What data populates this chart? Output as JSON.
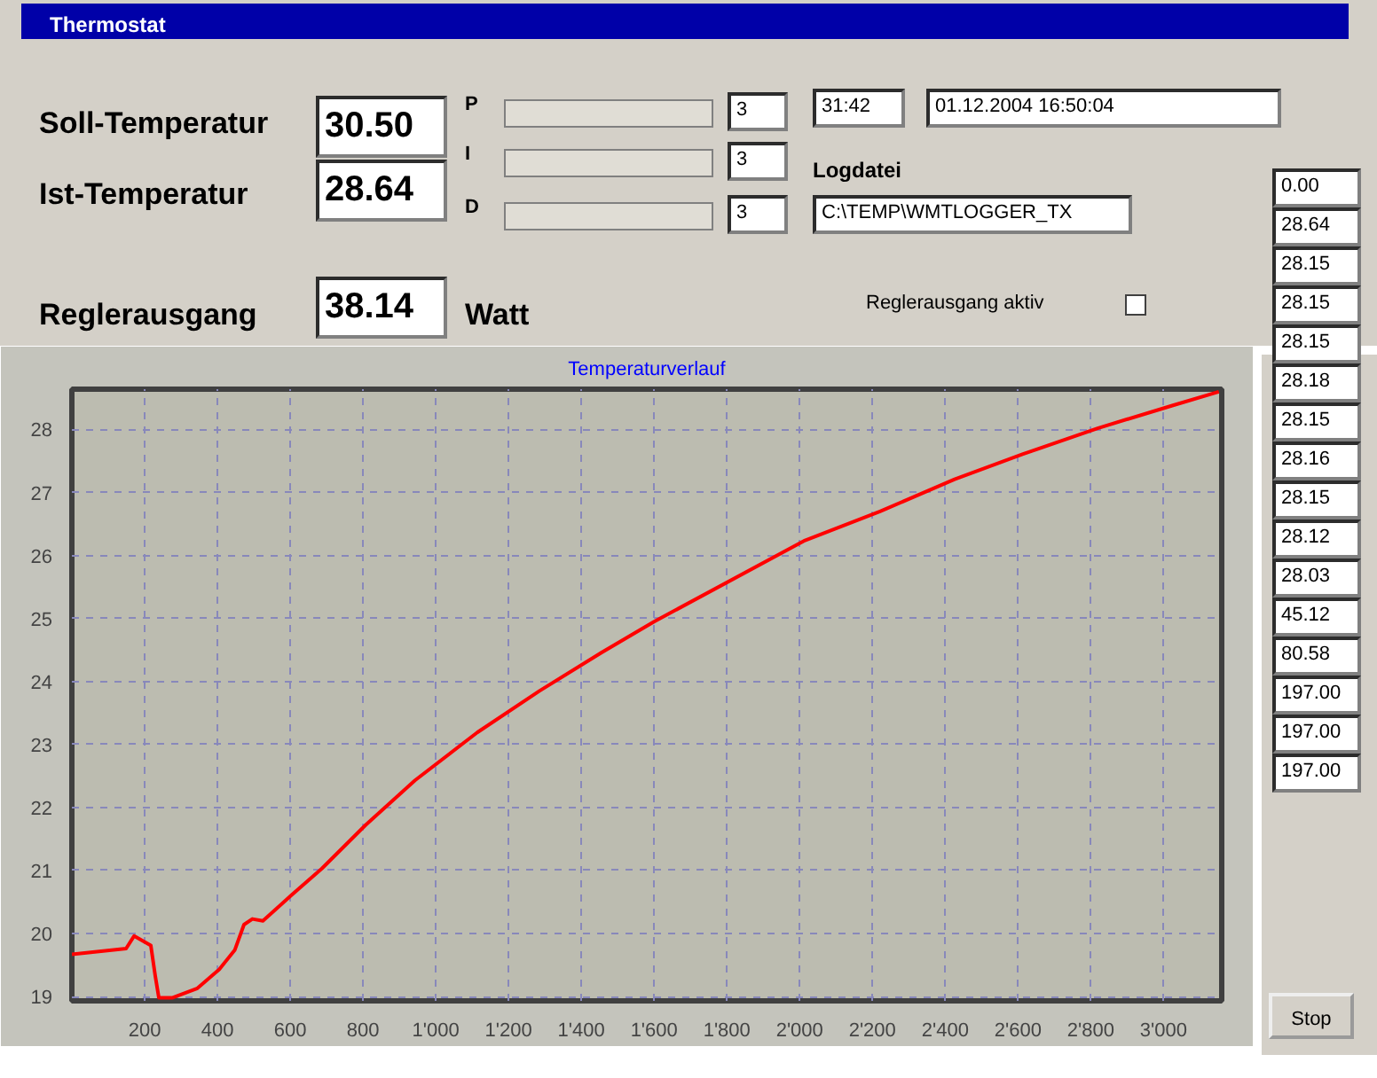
{
  "chart_data": {
    "type": "line",
    "title": "Temperaturverlauf",
    "x": [
      0,
      149,
      171,
      217,
      229,
      239,
      277,
      345,
      405,
      448,
      473,
      496,
      525,
      602,
      687,
      807,
      943,
      1114,
      1285,
      1456,
      1600,
      2015,
      2221,
      2426,
      2614,
      2819,
      3024,
      3152
    ],
    "series": [
      {
        "color": "#ff0000",
        "values": [
          19.67,
          19.76,
          19.96,
          19.81,
          19.33,
          18.98,
          18.98,
          19.13,
          19.43,
          19.74,
          20.14,
          20.23,
          20.2,
          20.6,
          21.03,
          21.72,
          22.43,
          23.19,
          23.85,
          24.46,
          24.95,
          26.24,
          26.7,
          27.21,
          27.61,
          28.02,
          28.38,
          28.6
        ]
      }
    ],
    "xlim": [
      0,
      3160
    ],
    "ylim": [
      18.93,
      28.64
    ],
    "xticks": [
      200,
      400,
      600,
      800,
      {
        "value": 1000,
        "label": "1'000"
      },
      {
        "value": 1200,
        "label": "1'200"
      },
      {
        "value": 1400,
        "label": "1'400"
      },
      {
        "value": 1600,
        "label": "1'600"
      },
      {
        "value": 1800,
        "label": "1'800"
      },
      {
        "value": 2000,
        "label": "2'000"
      },
      {
        "value": 2200,
        "label": "2'200"
      },
      {
        "value": 2400,
        "label": "2'400"
      },
      {
        "value": 2600,
        "label": "2'600"
      },
      {
        "value": 2800,
        "label": "2'800"
      },
      {
        "value": 3000,
        "label": "3'000"
      }
    ],
    "yticks": [
      19,
      20,
      21,
      22,
      23,
      24,
      25,
      26,
      27,
      28
    ],
    "grid": true,
    "line_style": "solid",
    "annotations": [
      "Thermostat",
      "Soll-Temperatur",
      "30.50",
      "Ist-Temperatur",
      "28.64",
      "Reglerausgang",
      "38.14",
      "Watt",
      "P",
      "I",
      "D",
      "3",
      "3",
      "3",
      "31:42",
      "01.12.2004 16:50:04",
      "Logdatei",
      "C:\\TEMP\\WMTLOGGER_TX",
      "Reglerausgang aktiv",
      "0.00",
      "28.64",
      "28.15",
      "28.15",
      "28.15",
      "28.18",
      "28.15",
      "28.16",
      "28.15",
      "28.12",
      "28.03",
      "45.12",
      "80.58",
      "197.00",
      "197.00",
      "197.00",
      "Stop"
    ]
  }
}
